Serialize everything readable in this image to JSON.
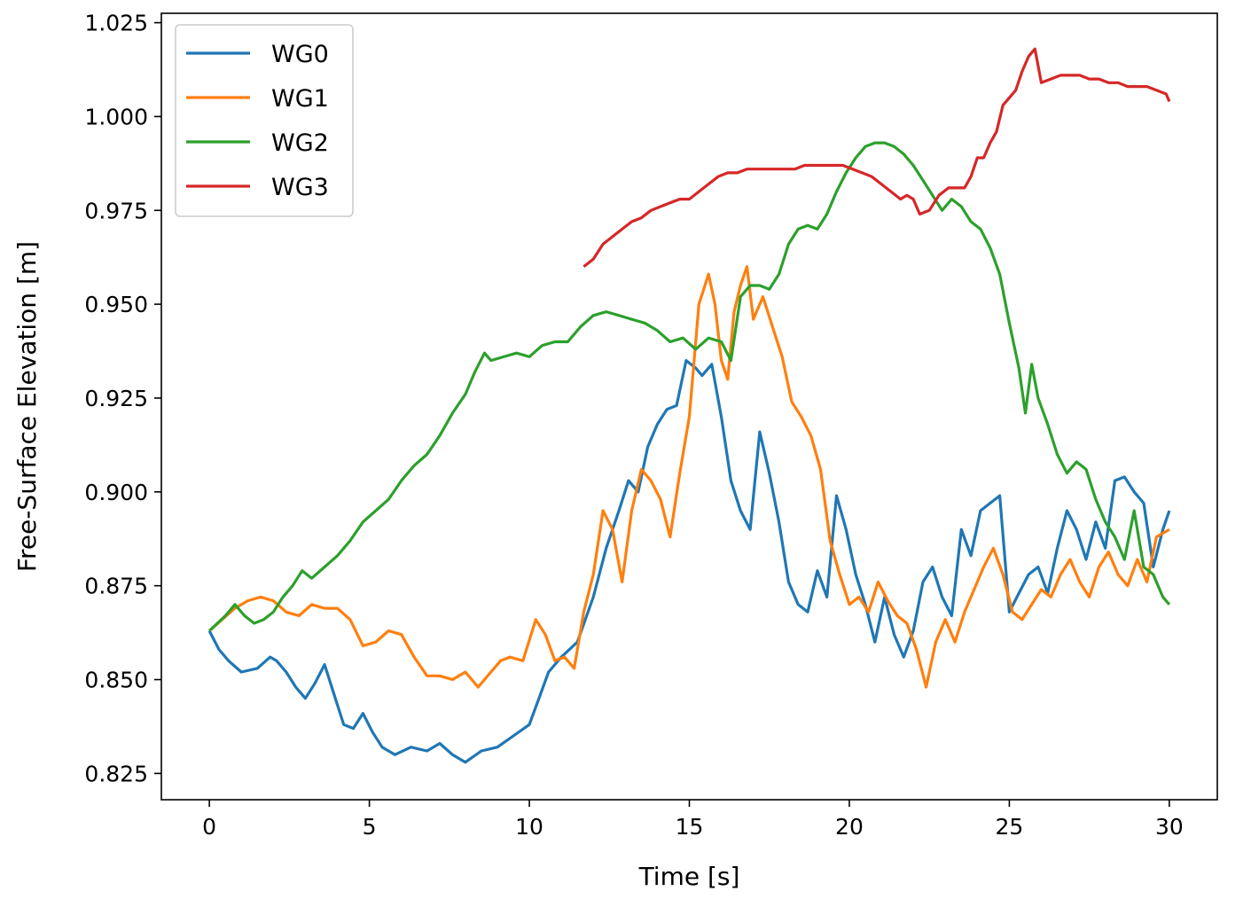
{
  "chart_data": {
    "type": "line",
    "title": "",
    "xlabel": "Time [s]",
    "ylabel": "Free-Surface Elevation [m]",
    "xlim": [
      -1.5,
      31.5
    ],
    "ylim": [
      0.818,
      1.0275
    ],
    "xticks": [
      0,
      5,
      10,
      15,
      20,
      25,
      30
    ],
    "xtick_labels": [
      "0",
      "5",
      "10",
      "15",
      "20",
      "25",
      "30"
    ],
    "yticks": [
      0.825,
      0.85,
      0.875,
      0.9,
      0.925,
      0.95,
      0.975,
      1.0,
      1.025
    ],
    "ytick_labels": [
      "0.825",
      "0.850",
      "0.875",
      "0.900",
      "0.925",
      "0.950",
      "0.975",
      "1.000",
      "1.025"
    ],
    "grid": false,
    "legend_position": "upper-left",
    "series": [
      {
        "name": "WG0",
        "color": "#1f77b4",
        "x": [
          0,
          0.3,
          0.6,
          1.0,
          1.5,
          1.9,
          2.1,
          2.4,
          2.7,
          3.0,
          3.3,
          3.6,
          3.9,
          4.2,
          4.5,
          4.8,
          5.1,
          5.4,
          5.8,
          6.3,
          6.8,
          7.2,
          7.6,
          8.0,
          8.5,
          9.0,
          9.5,
          10.0,
          10.3,
          10.6,
          11.0,
          11.5,
          12.0,
          12.4,
          12.8,
          13.1,
          13.4,
          13.7,
          14.0,
          14.3,
          14.6,
          14.9,
          15.2,
          15.4,
          15.7,
          16.0,
          16.3,
          16.6,
          16.9,
          17.2,
          17.5,
          17.8,
          18.1,
          18.4,
          18.7,
          19.0,
          19.3,
          19.6,
          19.9,
          20.2,
          20.5,
          20.8,
          21.1,
          21.4,
          21.7,
          22.0,
          22.3,
          22.6,
          22.9,
          23.2,
          23.5,
          23.8,
          24.1,
          24.4,
          24.7,
          25.0,
          25.3,
          25.6,
          25.9,
          26.2,
          26.5,
          26.8,
          27.1,
          27.4,
          27.7,
          28.0,
          28.3,
          28.6,
          28.9,
          29.2,
          29.5,
          29.8,
          30.0
        ],
        "y": [
          0.863,
          0.858,
          0.855,
          0.852,
          0.853,
          0.856,
          0.855,
          0.852,
          0.848,
          0.845,
          0.849,
          0.854,
          0.846,
          0.838,
          0.837,
          0.841,
          0.836,
          0.832,
          0.83,
          0.832,
          0.831,
          0.833,
          0.83,
          0.828,
          0.831,
          0.832,
          0.835,
          0.838,
          0.845,
          0.852,
          0.856,
          0.86,
          0.872,
          0.885,
          0.895,
          0.903,
          0.9,
          0.912,
          0.918,
          0.922,
          0.923,
          0.935,
          0.933,
          0.931,
          0.934,
          0.92,
          0.903,
          0.895,
          0.89,
          0.916,
          0.905,
          0.892,
          0.876,
          0.87,
          0.868,
          0.879,
          0.872,
          0.899,
          0.89,
          0.878,
          0.87,
          0.86,
          0.872,
          0.862,
          0.856,
          0.863,
          0.876,
          0.88,
          0.872,
          0.867,
          0.89,
          0.883,
          0.895,
          0.897,
          0.899,
          0.868,
          0.873,
          0.878,
          0.88,
          0.873,
          0.885,
          0.895,
          0.89,
          0.882,
          0.892,
          0.885,
          0.903,
          0.904,
          0.9,
          0.897,
          0.88,
          0.89,
          0.895
        ]
      },
      {
        "name": "WG1",
        "color": "#ff7f0e",
        "x": [
          0,
          0.4,
          0.8,
          1.2,
          1.6,
          2.0,
          2.4,
          2.8,
          3.2,
          3.6,
          4.0,
          4.4,
          4.8,
          5.2,
          5.6,
          6.0,
          6.4,
          6.8,
          7.2,
          7.6,
          8.0,
          8.4,
          8.8,
          9.1,
          9.4,
          9.8,
          10.2,
          10.5,
          10.8,
          11.1,
          11.4,
          11.7,
          12.0,
          12.3,
          12.6,
          12.9,
          13.2,
          13.5,
          13.8,
          14.1,
          14.4,
          14.7,
          15.0,
          15.3,
          15.6,
          15.8,
          16.0,
          16.2,
          16.4,
          16.6,
          16.8,
          17.0,
          17.3,
          17.6,
          17.9,
          18.2,
          18.5,
          18.8,
          19.1,
          19.4,
          19.7,
          20.0,
          20.3,
          20.6,
          20.9,
          21.2,
          21.5,
          21.8,
          22.1,
          22.4,
          22.7,
          23.0,
          23.3,
          23.6,
          23.9,
          24.2,
          24.5,
          24.8,
          25.1,
          25.4,
          25.7,
          26.0,
          26.3,
          26.6,
          26.9,
          27.2,
          27.5,
          27.8,
          28.1,
          28.4,
          28.7,
          29.0,
          29.3,
          29.6,
          30.0
        ],
        "y": [
          0.863,
          0.866,
          0.869,
          0.871,
          0.872,
          0.871,
          0.868,
          0.867,
          0.87,
          0.869,
          0.869,
          0.866,
          0.859,
          0.86,
          0.863,
          0.862,
          0.856,
          0.851,
          0.851,
          0.85,
          0.852,
          0.848,
          0.852,
          0.855,
          0.856,
          0.855,
          0.866,
          0.862,
          0.855,
          0.856,
          0.853,
          0.868,
          0.878,
          0.895,
          0.89,
          0.876,
          0.895,
          0.906,
          0.903,
          0.898,
          0.888,
          0.905,
          0.92,
          0.95,
          0.958,
          0.95,
          0.935,
          0.93,
          0.948,
          0.955,
          0.96,
          0.946,
          0.952,
          0.944,
          0.936,
          0.924,
          0.92,
          0.915,
          0.906,
          0.887,
          0.878,
          0.87,
          0.872,
          0.868,
          0.876,
          0.871,
          0.867,
          0.865,
          0.858,
          0.848,
          0.86,
          0.866,
          0.86,
          0.868,
          0.874,
          0.88,
          0.885,
          0.878,
          0.868,
          0.866,
          0.87,
          0.874,
          0.872,
          0.878,
          0.882,
          0.876,
          0.872,
          0.88,
          0.884,
          0.878,
          0.875,
          0.882,
          0.876,
          0.888,
          0.89
        ]
      },
      {
        "name": "WG2",
        "color": "#2ca02c",
        "x": [
          0,
          0.5,
          0.8,
          1.1,
          1.4,
          1.7,
          2.0,
          2.3,
          2.6,
          2.9,
          3.2,
          3.6,
          4.0,
          4.4,
          4.8,
          5.2,
          5.6,
          6.0,
          6.4,
          6.8,
          7.2,
          7.6,
          8.0,
          8.3,
          8.6,
          8.8,
          9.2,
          9.6,
          10.0,
          10.4,
          10.8,
          11.2,
          11.6,
          12.0,
          12.4,
          12.8,
          13.2,
          13.6,
          14.0,
          14.4,
          14.8,
          15.2,
          15.6,
          16.0,
          16.3,
          16.6,
          16.9,
          17.2,
          17.5,
          17.8,
          18.1,
          18.4,
          18.7,
          19.0,
          19.3,
          19.6,
          19.9,
          20.2,
          20.5,
          20.8,
          21.1,
          21.4,
          21.7,
          22.0,
          22.3,
          22.6,
          22.9,
          23.2,
          23.5,
          23.8,
          24.1,
          24.4,
          24.7,
          25.0,
          25.3,
          25.5,
          25.7,
          25.9,
          26.2,
          26.5,
          26.8,
          27.1,
          27.4,
          27.7,
          28.0,
          28.3,
          28.6,
          28.9,
          29.2,
          29.5,
          29.8,
          30.0
        ],
        "y": [
          0.863,
          0.867,
          0.87,
          0.867,
          0.865,
          0.866,
          0.868,
          0.872,
          0.875,
          0.879,
          0.877,
          0.88,
          0.883,
          0.887,
          0.892,
          0.895,
          0.898,
          0.903,
          0.907,
          0.91,
          0.915,
          0.921,
          0.926,
          0.932,
          0.937,
          0.935,
          0.936,
          0.937,
          0.936,
          0.939,
          0.94,
          0.94,
          0.944,
          0.947,
          0.948,
          0.947,
          0.946,
          0.945,
          0.943,
          0.94,
          0.941,
          0.938,
          0.941,
          0.94,
          0.935,
          0.952,
          0.955,
          0.955,
          0.954,
          0.958,
          0.966,
          0.97,
          0.971,
          0.97,
          0.974,
          0.98,
          0.985,
          0.989,
          0.992,
          0.993,
          0.993,
          0.992,
          0.99,
          0.987,
          0.983,
          0.979,
          0.975,
          0.978,
          0.976,
          0.972,
          0.97,
          0.965,
          0.958,
          0.945,
          0.933,
          0.921,
          0.934,
          0.925,
          0.918,
          0.91,
          0.905,
          0.908,
          0.906,
          0.898,
          0.892,
          0.888,
          0.882,
          0.895,
          0.88,
          0.878,
          0.872,
          0.87
        ]
      },
      {
        "name": "WG3",
        "color": "#d62728",
        "x": [
          11.7,
          12.0,
          12.3,
          12.6,
          12.9,
          13.2,
          13.5,
          13.8,
          14.1,
          14.4,
          14.7,
          15.0,
          15.3,
          15.6,
          15.9,
          16.2,
          16.5,
          16.8,
          17.1,
          17.4,
          17.7,
          18.0,
          18.3,
          18.6,
          18.9,
          19.2,
          19.5,
          19.8,
          20.1,
          20.4,
          20.7,
          21.0,
          21.3,
          21.6,
          21.8,
          22.0,
          22.2,
          22.5,
          22.8,
          23.1,
          23.4,
          23.6,
          23.8,
          24.0,
          24.2,
          24.4,
          24.6,
          24.8,
          25.0,
          25.2,
          25.4,
          25.6,
          25.8,
          26.0,
          26.3,
          26.6,
          26.9,
          27.2,
          27.5,
          27.8,
          28.1,
          28.4,
          28.7,
          29.0,
          29.3,
          29.6,
          29.9,
          30.0
        ],
        "y": [
          0.96,
          0.962,
          0.966,
          0.968,
          0.97,
          0.972,
          0.973,
          0.975,
          0.976,
          0.977,
          0.978,
          0.978,
          0.98,
          0.982,
          0.984,
          0.985,
          0.985,
          0.986,
          0.986,
          0.986,
          0.986,
          0.986,
          0.986,
          0.987,
          0.987,
          0.987,
          0.987,
          0.987,
          0.986,
          0.985,
          0.984,
          0.982,
          0.98,
          0.978,
          0.979,
          0.978,
          0.974,
          0.975,
          0.979,
          0.981,
          0.981,
          0.981,
          0.984,
          0.989,
          0.989,
          0.993,
          0.996,
          1.003,
          1.005,
          1.007,
          1.012,
          1.016,
          1.018,
          1.009,
          1.01,
          1.011,
          1.011,
          1.011,
          1.01,
          1.01,
          1.009,
          1.009,
          1.008,
          1.008,
          1.008,
          1.007,
          1.006,
          1.004
        ]
      }
    ]
  }
}
